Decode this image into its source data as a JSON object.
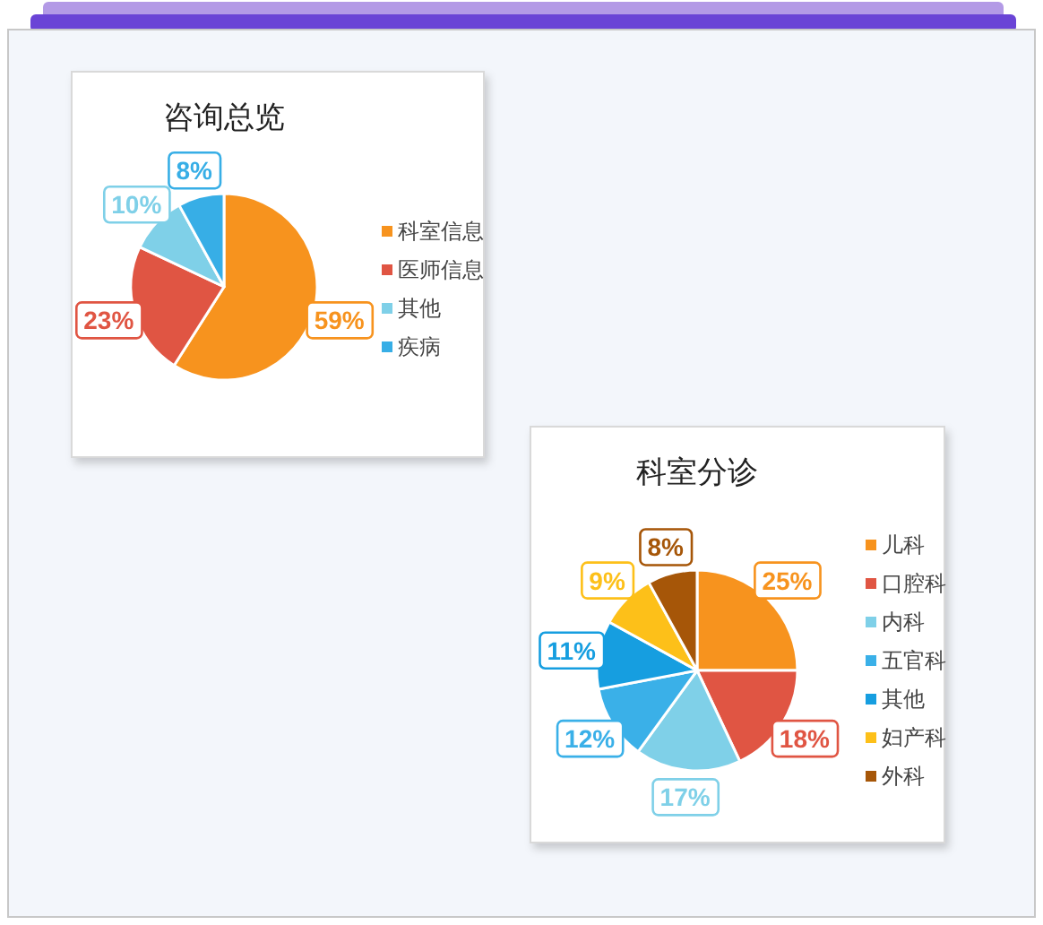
{
  "chart_data": [
    {
      "type": "pie",
      "title": "咨询总览",
      "categories": [
        "科室信息",
        "医师信息",
        "其他",
        "疾病"
      ],
      "values": [
        59,
        23,
        10,
        8
      ],
      "colors": [
        "#f7931e",
        "#e05543",
        "#7fd0e8",
        "#37aee6"
      ],
      "value_labels": [
        "59%",
        "23%",
        "10%",
        "8%"
      ],
      "legend": "right"
    },
    {
      "type": "pie",
      "title": "科室分诊",
      "categories": [
        "儿科",
        "口腔科",
        "内科",
        "五官科",
        "其他",
        "妇产科",
        "外科"
      ],
      "values": [
        25,
        18,
        17,
        12,
        11,
        9,
        8
      ],
      "colors": [
        "#f7931e",
        "#e05543",
        "#7fd0e8",
        "#3ab0e8",
        "#169ee0",
        "#fdc019",
        "#a65608"
      ],
      "value_labels": [
        "25%",
        "18%",
        "17%",
        "12%",
        "11%",
        "9%",
        "8%"
      ],
      "legend": "right"
    }
  ]
}
